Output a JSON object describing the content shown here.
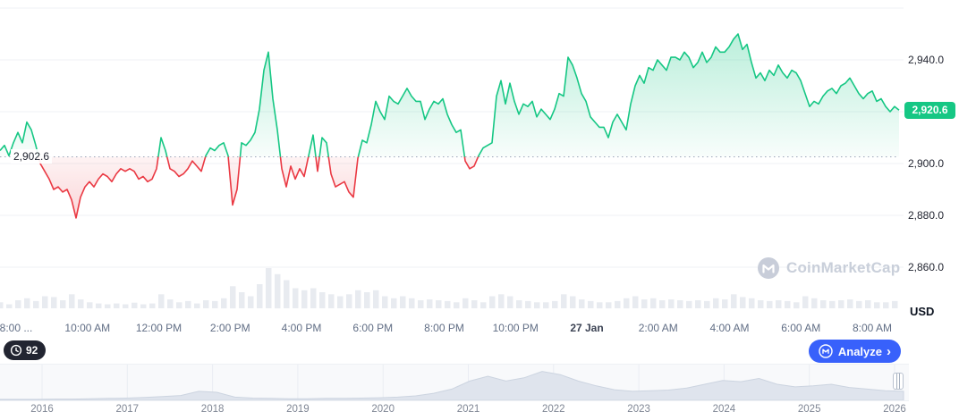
{
  "toolbar": {
    "history_count": "92",
    "analyze_label": "Analyze",
    "chevron_right": "›"
  },
  "watermark": {
    "text": "CoinMarketCap"
  },
  "icons": {
    "history_badge": "clock-icon",
    "analyze_button": "coinmarketcap-logo-icon",
    "analyze_chevron": "chevron-right-icon",
    "watermark": "coinmarketcap-logo-icon",
    "navigator": "drag-handle-icon"
  },
  "chart_data": [
    {
      "type": "line",
      "unit": "USD",
      "baseline_open": 2902.6,
      "baseline_label": "2,902.6",
      "last_price": 2920.6,
      "last_price_label": "2,920.6",
      "ylim": [
        2852,
        2963
      ],
      "grid_prices": [
        2960,
        2940,
        2920,
        2900,
        2880,
        2860
      ],
      "y_ticks": [
        {
          "price": 2940,
          "label": "2,940.0"
        },
        {
          "price": 2900,
          "label": "2,900.0"
        },
        {
          "price": 2880,
          "label": "2,880.0"
        },
        {
          "price": 2860,
          "label": "2,860.0"
        }
      ],
      "x_tick_labels": [
        "8:00 ...",
        "10:00 AM",
        "12:00 PM",
        "2:00 PM",
        "4:00 PM",
        "6:00 PM",
        "8:00 PM",
        "10:00 PM",
        "27 Jan",
        "2:00 AM",
        "4:00 AM",
        "6:00 AM",
        "8:00 AM"
      ],
      "emphasized_tick": "27 Jan",
      "colors": {
        "up": "#16c784",
        "down": "#ea3943",
        "grid": "#eff2f5",
        "volume": "#e8ebf0",
        "badge": "#16c784"
      },
      "prices": [
        2905,
        2907,
        2903,
        2908,
        2912,
        2908,
        2916,
        2913,
        2907,
        2900,
        2897,
        2894,
        2890,
        2891,
        2889,
        2890,
        2886,
        2879,
        2887,
        2891,
        2893,
        2891,
        2894,
        2896,
        2895,
        2893,
        2896,
        2898,
        2897,
        2898,
        2897,
        2894,
        2895,
        2893,
        2894,
        2898,
        2910,
        2905,
        2898,
        2897,
        2895,
        2896,
        2898,
        2901,
        2899,
        2897,
        2903,
        2906,
        2905,
        2907,
        2908,
        2903,
        2884,
        2890,
        2908,
        2907,
        2909,
        2912,
        2921,
        2936,
        2943,
        2925,
        2913,
        2898,
        2891,
        2899,
        2894,
        2898,
        2895,
        2903,
        2911,
        2897,
        2910,
        2908,
        2896,
        2891,
        2892,
        2893,
        2889,
        2887,
        2902,
        2909,
        2908,
        2915,
        2924,
        2920,
        2917,
        2926,
        2924,
        2923,
        2926,
        2929,
        2926,
        2924,
        2924,
        2917,
        2921,
        2924,
        2923,
        2925,
        2919,
        2915,
        2912,
        2913,
        2901,
        2898,
        2899,
        2903,
        2906,
        2907,
        2908,
        2926,
        2932,
        2923,
        2931,
        2924,
        2919,
        2923,
        2922,
        2924,
        2918,
        2921,
        2919,
        2917,
        2921,
        2927,
        2926,
        2941,
        2938,
        2933,
        2927,
        2924,
        2918,
        2916,
        2914,
        2914,
        2910,
        2916,
        2919,
        2916,
        2913,
        2923,
        2930,
        2934,
        2931,
        2937,
        2936,
        2940,
        2938,
        2936,
        2941,
        2941,
        2940,
        2943,
        2941,
        2937,
        2939,
        2943,
        2939,
        2941,
        2945,
        2943,
        2943,
        2945,
        2948,
        2950,
        2944,
        2946,
        2939,
        2933,
        2935,
        2932,
        2936,
        2934,
        2938,
        2935,
        2933,
        2936,
        2935,
        2932,
        2927,
        2922,
        2924,
        2923,
        2926,
        2928,
        2929,
        2927,
        2930,
        2931,
        2933,
        2930,
        2927,
        2925,
        2927,
        2928,
        2924,
        2925,
        2922,
        2920,
        2922,
        2920.6
      ],
      "volume_rel": [
        0.15,
        0.1,
        0.2,
        0.25,
        0.18,
        0.3,
        0.28,
        0.2,
        0.35,
        0.22,
        0.15,
        0.12,
        0.1,
        0.12,
        0.1,
        0.14,
        0.1,
        0.12,
        0.35,
        0.22,
        0.15,
        0.18,
        0.12,
        0.2,
        0.18,
        0.25,
        0.55,
        0.4,
        0.3,
        0.6,
        1.0,
        0.85,
        0.7,
        0.5,
        0.45,
        0.5,
        0.4,
        0.35,
        0.3,
        0.35,
        0.45,
        0.4,
        0.45,
        0.3,
        0.25,
        0.3,
        0.25,
        0.2,
        0.22,
        0.2,
        0.18,
        0.15,
        0.25,
        0.2,
        0.15,
        0.3,
        0.35,
        0.3,
        0.2,
        0.18,
        0.15,
        0.15,
        0.18,
        0.35,
        0.3,
        0.22,
        0.18,
        0.15,
        0.15,
        0.18,
        0.25,
        0.3,
        0.22,
        0.25,
        0.2,
        0.22,
        0.2,
        0.18,
        0.2,
        0.18,
        0.25,
        0.22,
        0.35,
        0.28,
        0.25,
        0.2,
        0.18,
        0.2,
        0.18,
        0.15,
        0.3,
        0.25,
        0.2,
        0.18,
        0.2,
        0.22,
        0.18,
        0.2,
        0.15,
        0.15,
        0.18
      ]
    },
    {
      "type": "area",
      "role": "timeline-navigator",
      "categories": [
        "2016",
        "2017",
        "2018",
        "2019",
        "2020",
        "2021",
        "2022",
        "2023",
        "2024",
        "2025",
        "2026"
      ],
      "fill": "#dfe4ed",
      "stroke": "#ccd4e0",
      "values_rel": [
        0.03,
        0.03,
        0.03,
        0.04,
        0.04,
        0.05,
        0.06,
        0.07,
        0.09,
        0.12,
        0.15,
        0.28,
        0.25,
        0.1,
        0.07,
        0.06,
        0.05,
        0.05,
        0.06,
        0.06,
        0.07,
        0.08,
        0.1,
        0.14,
        0.22,
        0.35,
        0.6,
        0.75,
        0.6,
        0.7,
        0.9,
        0.8,
        0.6,
        0.45,
        0.33,
        0.28,
        0.3,
        0.32,
        0.38,
        0.5,
        0.62,
        0.58,
        0.68,
        0.5,
        0.42,
        0.45,
        0.5,
        0.4,
        0.35,
        0.3,
        0.28
      ]
    }
  ]
}
